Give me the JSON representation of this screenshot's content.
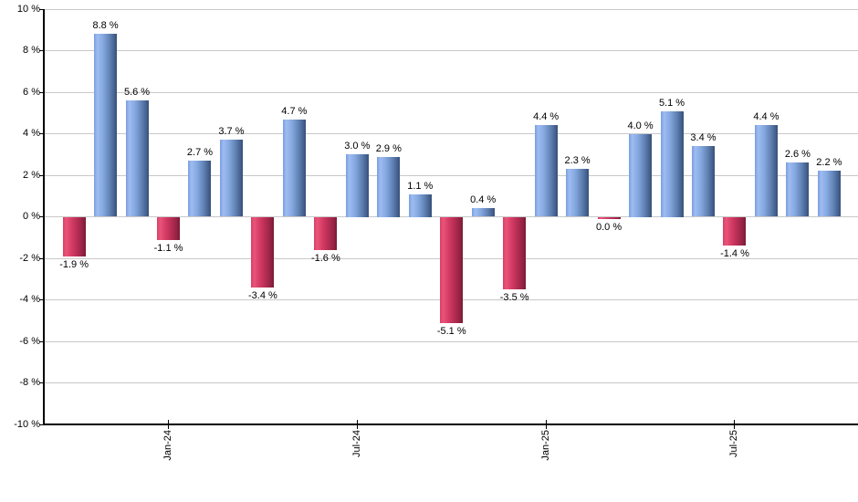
{
  "chart_data": {
    "type": "bar",
    "title": "",
    "xlabel": "",
    "ylabel": "",
    "ylim": [
      -10,
      10
    ],
    "grid": true,
    "legend": "none",
    "axis_color": "#000000",
    "grid_color": "#c8c8c8",
    "positive_color": "#7ba0de",
    "negative_color": "#c93560",
    "label_color": "#000000",
    "yticks": [
      {
        "value": 10,
        "label": "10 %"
      },
      {
        "value": 8,
        "label": "8 %"
      },
      {
        "value": 6,
        "label": "6 %"
      },
      {
        "value": 4,
        "label": "4 %"
      },
      {
        "value": 2,
        "label": "2 %"
      },
      {
        "value": 0,
        "label": "0 %"
      },
      {
        "value": -2,
        "label": "-2 %"
      },
      {
        "value": -4,
        "label": "-4 %"
      },
      {
        "value": -6,
        "label": "-6 %"
      },
      {
        "value": -8,
        "label": "-8 %"
      },
      {
        "value": -10,
        "label": "-10 %"
      }
    ],
    "xticks": [
      {
        "label": "Jan-24",
        "bar_index": 3
      },
      {
        "label": "Jul-24",
        "bar_index": 9
      },
      {
        "label": "Jan-25",
        "bar_index": 15
      },
      {
        "label": "Jul-25",
        "bar_index": 21
      }
    ],
    "bars": [
      {
        "value": -1.9,
        "label": "-1.9 %"
      },
      {
        "value": 8.8,
        "label": "8.8 %"
      },
      {
        "value": 5.6,
        "label": "5.6 %"
      },
      {
        "value": -1.1,
        "label": "-1.1 %"
      },
      {
        "value": 2.7,
        "label": "2.7 %"
      },
      {
        "value": 3.7,
        "label": "3.7 %"
      },
      {
        "value": -3.4,
        "label": "-3.4 %"
      },
      {
        "value": 4.7,
        "label": "4.7 %"
      },
      {
        "value": -1.6,
        "label": "-1.6 %"
      },
      {
        "value": 3.0,
        "label": "3.0 %"
      },
      {
        "value": 2.9,
        "label": "2.9 %"
      },
      {
        "value": 1.1,
        "label": "1.1 %"
      },
      {
        "value": -5.1,
        "label": "-5.1 %"
      },
      {
        "value": 0.4,
        "label": "0.4 %"
      },
      {
        "value": -3.5,
        "label": "-3.5 %"
      },
      {
        "value": 4.4,
        "label": "4.4 %"
      },
      {
        "value": 2.3,
        "label": "2.3 %"
      },
      {
        "value": 0.0,
        "label": "0.0 %"
      },
      {
        "value": 4.0,
        "label": "4.0 %"
      },
      {
        "value": 5.1,
        "label": "5.1 %"
      },
      {
        "value": 3.4,
        "label": "3.4 %"
      },
      {
        "value": -1.4,
        "label": "-1.4 %"
      },
      {
        "value": 4.4,
        "label": "4.4 %"
      },
      {
        "value": 2.6,
        "label": "2.6 %"
      },
      {
        "value": 2.2,
        "label": "2.2 %"
      }
    ]
  }
}
